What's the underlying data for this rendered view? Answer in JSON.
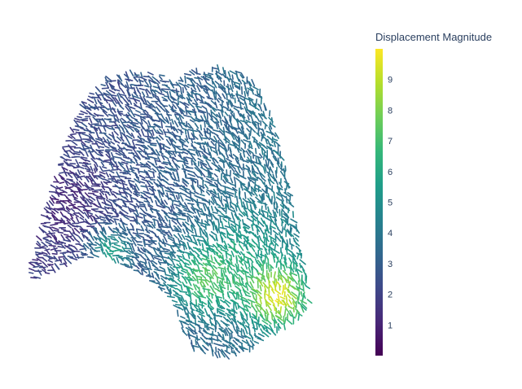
{
  "chart_data": {
    "type": "cone",
    "colorbar": {
      "title": "Displacement Magnitude",
      "colorscale": "viridis",
      "range": [
        0,
        10
      ],
      "ticks": [
        1,
        2,
        3,
        4,
        5,
        6,
        7,
        8,
        9
      ]
    },
    "colors": {
      "viridis": [
        "#440154",
        "#482878",
        "#3e4989",
        "#31688e",
        "#26828e",
        "#1f9e89",
        "#35b779",
        "#6ece58",
        "#b5de2b",
        "#fde725"
      ],
      "text": "#2a3f5f"
    },
    "legend": "none",
    "grid": false
  }
}
